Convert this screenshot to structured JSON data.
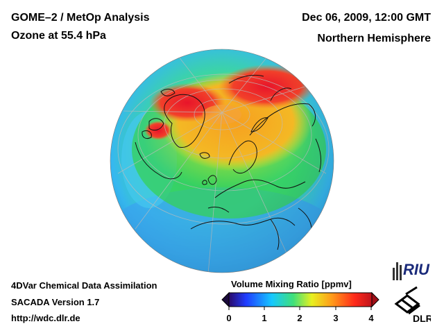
{
  "header": {
    "title": "GOME–2 / MetOp Analysis",
    "subtitle": "Ozone at 55.4 hPa",
    "datetime": "Dec 06, 2009, 12:00 GMT",
    "region": "Northern Hemisphere"
  },
  "footer": {
    "line1": "4DVar Chemical Data Assimilation",
    "line2": "SACADA Version 1.7",
    "line3": "http://wdc.dlr.de"
  },
  "colorbar": {
    "title": "Volume Mixing Ratio [ppmv]",
    "ticks": [
      "0",
      "1",
      "2",
      "3",
      "4"
    ],
    "range": [
      0,
      4
    ],
    "colors": [
      "#2a0a6a",
      "#1f3cff",
      "#16c8ff",
      "#3fe07a",
      "#e8f020",
      "#ff9b1a",
      "#ff2a1a",
      "#c0141c"
    ]
  },
  "logos": {
    "riu": "RIU",
    "dlr": "DLR"
  },
  "map": {
    "projection": "orthographic",
    "center": "North Pole (tilted)",
    "colors": {
      "outer": "#2ea6f0",
      "low": "#5fd2f0",
      "mid_green": "#2fcf4a",
      "yellow": "#e4e42a",
      "orange": "#f59a22",
      "red": "#f23526"
    }
  }
}
